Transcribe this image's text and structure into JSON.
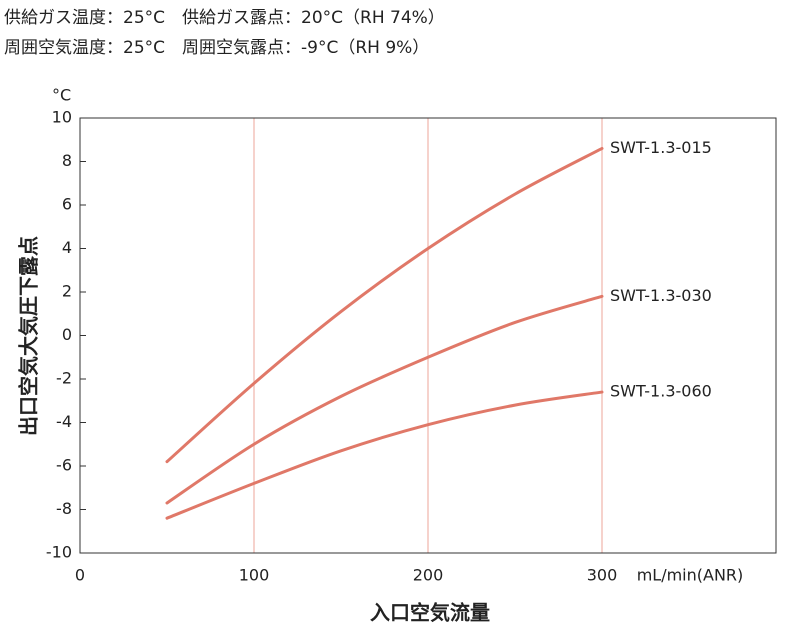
{
  "chart_data": {
    "type": "line",
    "notes": [
      "供給ガス温度：25°C　供給ガス露点：20°C（RH 74%）",
      "周囲空気温度：25°C　周囲空気露点：-9°C（RH 9%）"
    ],
    "y_unit": "°C",
    "x_unit": "mL/min(ANR)",
    "x_label": "入口空気流量",
    "y_label": "出口空気大気圧下露点",
    "x": [
      50,
      100,
      150,
      200,
      250,
      300
    ],
    "series": [
      {
        "name": "SWT-1.3-015",
        "color": "#e07868",
        "values": [
          -5.8,
          -2.2,
          1.1,
          4.0,
          6.5,
          8.6
        ]
      },
      {
        "name": "SWT-1.3-030",
        "color": "#e07868",
        "values": [
          -7.7,
          -5.0,
          -2.8,
          -1.0,
          0.6,
          1.8
        ]
      },
      {
        "name": "SWT-1.3-060",
        "color": "#e07868",
        "values": [
          -8.4,
          -6.8,
          -5.3,
          -4.1,
          -3.2,
          -2.6
        ]
      }
    ],
    "xlim": [
      0,
      400
    ],
    "xticks": [
      0,
      100,
      200,
      300
    ],
    "ylim": [
      -10,
      10
    ],
    "yticks": [
      -10,
      -8,
      -6,
      -4,
      -2,
      0,
      2,
      4,
      6,
      8,
      10
    ],
    "grid_color": "#f0b4aa"
  }
}
